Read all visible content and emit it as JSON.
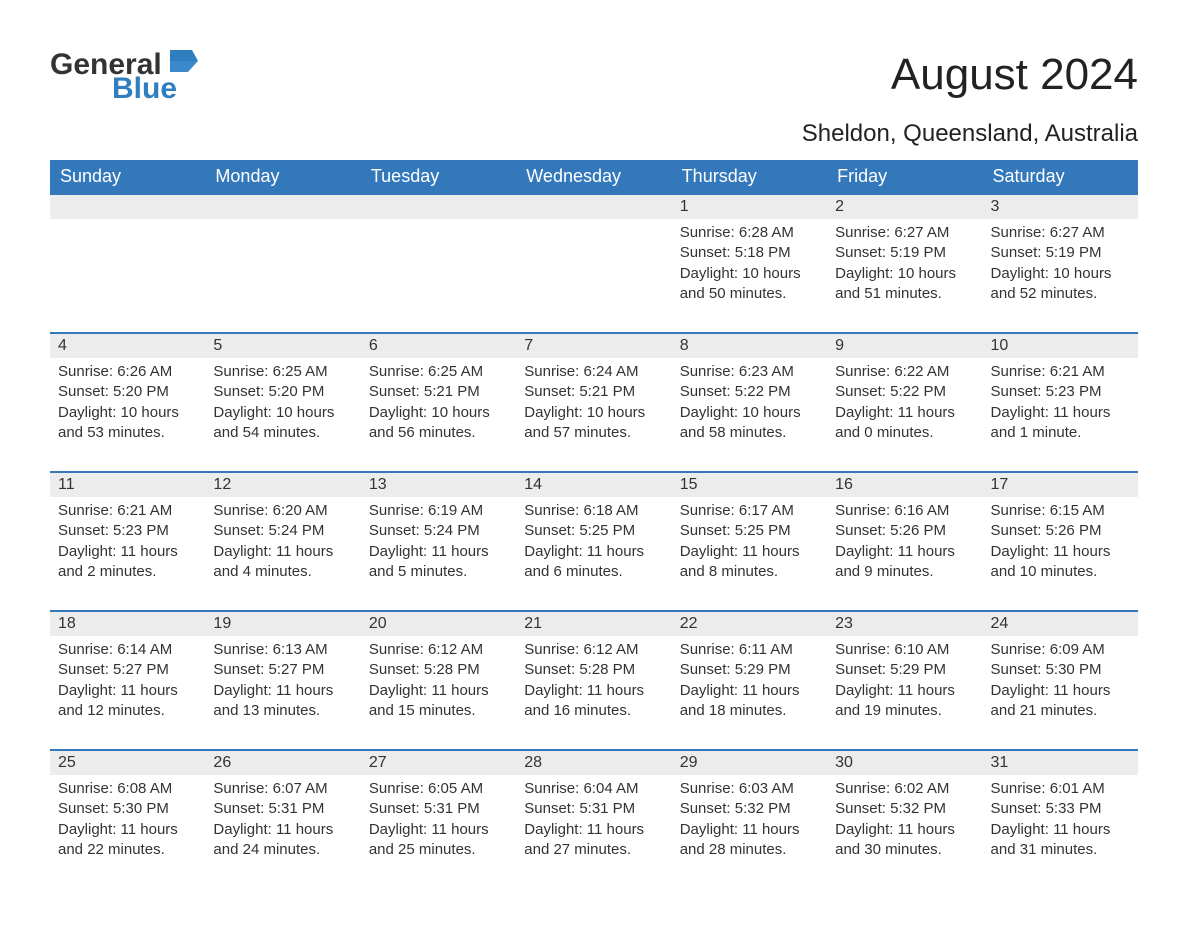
{
  "logo": {
    "word1": "General",
    "word2": "Blue",
    "color_general": "#333333",
    "color_blue": "#2f7fc0"
  },
  "title": "August 2024",
  "subtitle": "Sheldon, Queensland, Australia",
  "header_bg": "#3478bc",
  "header_text_color": "#ffffff",
  "band_bg": "#ececec",
  "body_text_color": "#333333",
  "day_names": [
    "Sunday",
    "Monday",
    "Tuesday",
    "Wednesday",
    "Thursday",
    "Friday",
    "Saturday"
  ],
  "weeks": [
    [
      null,
      null,
      null,
      null,
      {
        "n": "1",
        "sunrise": "6:28 AM",
        "sunset": "5:18 PM",
        "daylight": "10 hours and 50 minutes."
      },
      {
        "n": "2",
        "sunrise": "6:27 AM",
        "sunset": "5:19 PM",
        "daylight": "10 hours and 51 minutes."
      },
      {
        "n": "3",
        "sunrise": "6:27 AM",
        "sunset": "5:19 PM",
        "daylight": "10 hours and 52 minutes."
      }
    ],
    [
      {
        "n": "4",
        "sunrise": "6:26 AM",
        "sunset": "5:20 PM",
        "daylight": "10 hours and 53 minutes."
      },
      {
        "n": "5",
        "sunrise": "6:25 AM",
        "sunset": "5:20 PM",
        "daylight": "10 hours and 54 minutes."
      },
      {
        "n": "6",
        "sunrise": "6:25 AM",
        "sunset": "5:21 PM",
        "daylight": "10 hours and 56 minutes."
      },
      {
        "n": "7",
        "sunrise": "6:24 AM",
        "sunset": "5:21 PM",
        "daylight": "10 hours and 57 minutes."
      },
      {
        "n": "8",
        "sunrise": "6:23 AM",
        "sunset": "5:22 PM",
        "daylight": "10 hours and 58 minutes."
      },
      {
        "n": "9",
        "sunrise": "6:22 AM",
        "sunset": "5:22 PM",
        "daylight": "11 hours and 0 minutes."
      },
      {
        "n": "10",
        "sunrise": "6:21 AM",
        "sunset": "5:23 PM",
        "daylight": "11 hours and 1 minute."
      }
    ],
    [
      {
        "n": "11",
        "sunrise": "6:21 AM",
        "sunset": "5:23 PM",
        "daylight": "11 hours and 2 minutes."
      },
      {
        "n": "12",
        "sunrise": "6:20 AM",
        "sunset": "5:24 PM",
        "daylight": "11 hours and 4 minutes."
      },
      {
        "n": "13",
        "sunrise": "6:19 AM",
        "sunset": "5:24 PM",
        "daylight": "11 hours and 5 minutes."
      },
      {
        "n": "14",
        "sunrise": "6:18 AM",
        "sunset": "5:25 PM",
        "daylight": "11 hours and 6 minutes."
      },
      {
        "n": "15",
        "sunrise": "6:17 AM",
        "sunset": "5:25 PM",
        "daylight": "11 hours and 8 minutes."
      },
      {
        "n": "16",
        "sunrise": "6:16 AM",
        "sunset": "5:26 PM",
        "daylight": "11 hours and 9 minutes."
      },
      {
        "n": "17",
        "sunrise": "6:15 AM",
        "sunset": "5:26 PM",
        "daylight": "11 hours and 10 minutes."
      }
    ],
    [
      {
        "n": "18",
        "sunrise": "6:14 AM",
        "sunset": "5:27 PM",
        "daylight": "11 hours and 12 minutes."
      },
      {
        "n": "19",
        "sunrise": "6:13 AM",
        "sunset": "5:27 PM",
        "daylight": "11 hours and 13 minutes."
      },
      {
        "n": "20",
        "sunrise": "6:12 AM",
        "sunset": "5:28 PM",
        "daylight": "11 hours and 15 minutes."
      },
      {
        "n": "21",
        "sunrise": "6:12 AM",
        "sunset": "5:28 PM",
        "daylight": "11 hours and 16 minutes."
      },
      {
        "n": "22",
        "sunrise": "6:11 AM",
        "sunset": "5:29 PM",
        "daylight": "11 hours and 18 minutes."
      },
      {
        "n": "23",
        "sunrise": "6:10 AM",
        "sunset": "5:29 PM",
        "daylight": "11 hours and 19 minutes."
      },
      {
        "n": "24",
        "sunrise": "6:09 AM",
        "sunset": "5:30 PM",
        "daylight": "11 hours and 21 minutes."
      }
    ],
    [
      {
        "n": "25",
        "sunrise": "6:08 AM",
        "sunset": "5:30 PM",
        "daylight": "11 hours and 22 minutes."
      },
      {
        "n": "26",
        "sunrise": "6:07 AM",
        "sunset": "5:31 PM",
        "daylight": "11 hours and 24 minutes."
      },
      {
        "n": "27",
        "sunrise": "6:05 AM",
        "sunset": "5:31 PM",
        "daylight": "11 hours and 25 minutes."
      },
      {
        "n": "28",
        "sunrise": "6:04 AM",
        "sunset": "5:31 PM",
        "daylight": "11 hours and 27 minutes."
      },
      {
        "n": "29",
        "sunrise": "6:03 AM",
        "sunset": "5:32 PM",
        "daylight": "11 hours and 28 minutes."
      },
      {
        "n": "30",
        "sunrise": "6:02 AM",
        "sunset": "5:32 PM",
        "daylight": "11 hours and 30 minutes."
      },
      {
        "n": "31",
        "sunrise": "6:01 AM",
        "sunset": "5:33 PM",
        "daylight": "11 hours and 31 minutes."
      }
    ]
  ],
  "labels": {
    "sunrise": "Sunrise: ",
    "sunset": "Sunset: ",
    "daylight": "Daylight: "
  }
}
